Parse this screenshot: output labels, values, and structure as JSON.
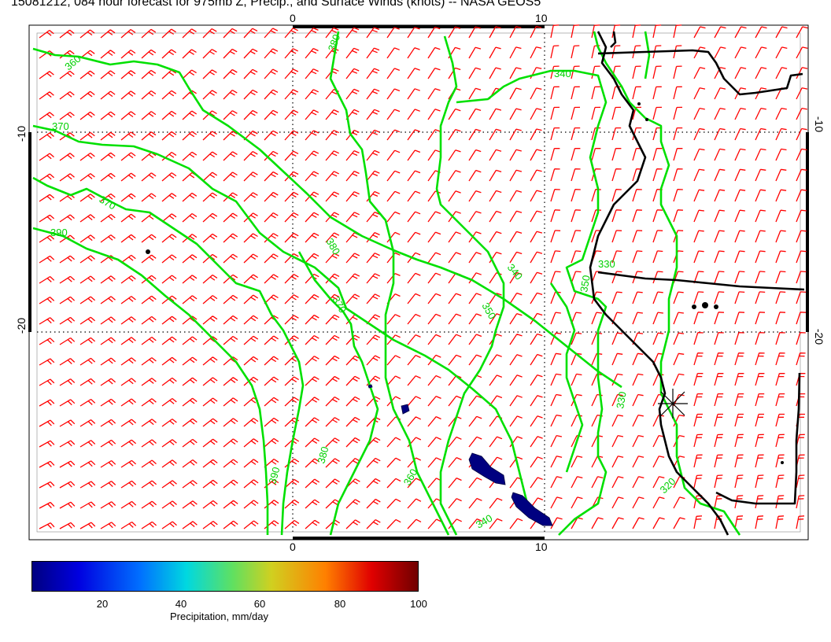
{
  "title": "15081212, 084 hour forecast for 975mb Z, Precip., and Surface Winds (knots) -- NASA GEOS5",
  "axes": {
    "top_ticks": [
      "0",
      "10"
    ],
    "bottom_ticks": [
      "0",
      "10"
    ],
    "left_ticks": [
      "-10",
      "-20"
    ],
    "right_ticks": [
      "-10",
      "-20"
    ]
  },
  "contour_labels": [
    "360",
    "370",
    "370",
    "380",
    "390",
    "380",
    "370",
    "360",
    "350",
    "340",
    "350",
    "340",
    "330",
    "330",
    "380",
    "390",
    "360",
    "340",
    "330",
    "320"
  ],
  "colors": {
    "contour": "#00e000",
    "wind_barb": "#ff0000",
    "coastline": "#000000",
    "precip": "#000080"
  },
  "colorbar": {
    "ticks": [
      "20",
      "40",
      "60",
      "80",
      "100"
    ],
    "label": "Precipitation, mm/day"
  }
}
